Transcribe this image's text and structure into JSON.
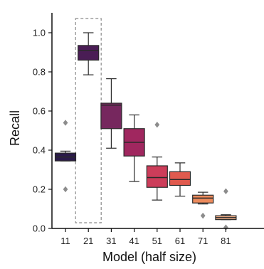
{
  "chart_data": {
    "type": "box",
    "xlabel": "Model (half size)",
    "ylabel": "Recall",
    "categories": [
      "11",
      "21",
      "31",
      "41",
      "51",
      "61",
      "71",
      "81"
    ],
    "ylim": [
      0.0,
      1.08
    ],
    "yticks": [
      "0.0",
      "0.2",
      "0.4",
      "0.6",
      "0.8",
      "1.0"
    ],
    "grid": false,
    "highlight_category": "21",
    "boxes": [
      {
        "category": "11",
        "whisker_low": 0.345,
        "q1": 0.345,
        "median": 0.365,
        "q3": 0.385,
        "whisker_high": 0.395,
        "outliers": [
          0.54,
          0.2
        ],
        "color": "#2a1a4a"
      },
      {
        "category": "21",
        "whisker_low": 0.785,
        "q1": 0.86,
        "median": 0.91,
        "q3": 0.935,
        "whisker_high": 1.0,
        "outliers": [],
        "color": "#4a1d55"
      },
      {
        "category": "31",
        "whisker_low": 0.41,
        "q1": 0.51,
        "median": 0.63,
        "q3": 0.64,
        "whisker_high": 0.765,
        "outliers": [],
        "color": "#76275e"
      },
      {
        "category": "41",
        "whisker_low": 0.24,
        "q1": 0.37,
        "median": 0.44,
        "q3": 0.51,
        "whisker_high": 0.58,
        "outliers": [],
        "color": "#a0275f"
      },
      {
        "category": "51",
        "whisker_low": 0.145,
        "q1": 0.21,
        "median": 0.26,
        "q3": 0.32,
        "whisker_high": 0.365,
        "outliers": [
          0.53
        ],
        "color": "#cc3d5a"
      },
      {
        "category": "61",
        "whisker_low": 0.165,
        "q1": 0.22,
        "median": 0.25,
        "q3": 0.29,
        "whisker_high": 0.335,
        "outliers": [],
        "color": "#e05a4e"
      },
      {
        "category": "71",
        "whisker_low": 0.125,
        "q1": 0.13,
        "median": 0.155,
        "q3": 0.17,
        "whisker_high": 0.185,
        "outliers": [
          0.065
        ],
        "color": "#ec8a5c"
      },
      {
        "category": "81",
        "whisker_low": 0.045,
        "q1": 0.045,
        "median": 0.055,
        "q3": 0.065,
        "whisker_high": 0.07,
        "outliers": [
          0.19,
          0.005
        ],
        "color": "#f4b28a"
      }
    ]
  }
}
